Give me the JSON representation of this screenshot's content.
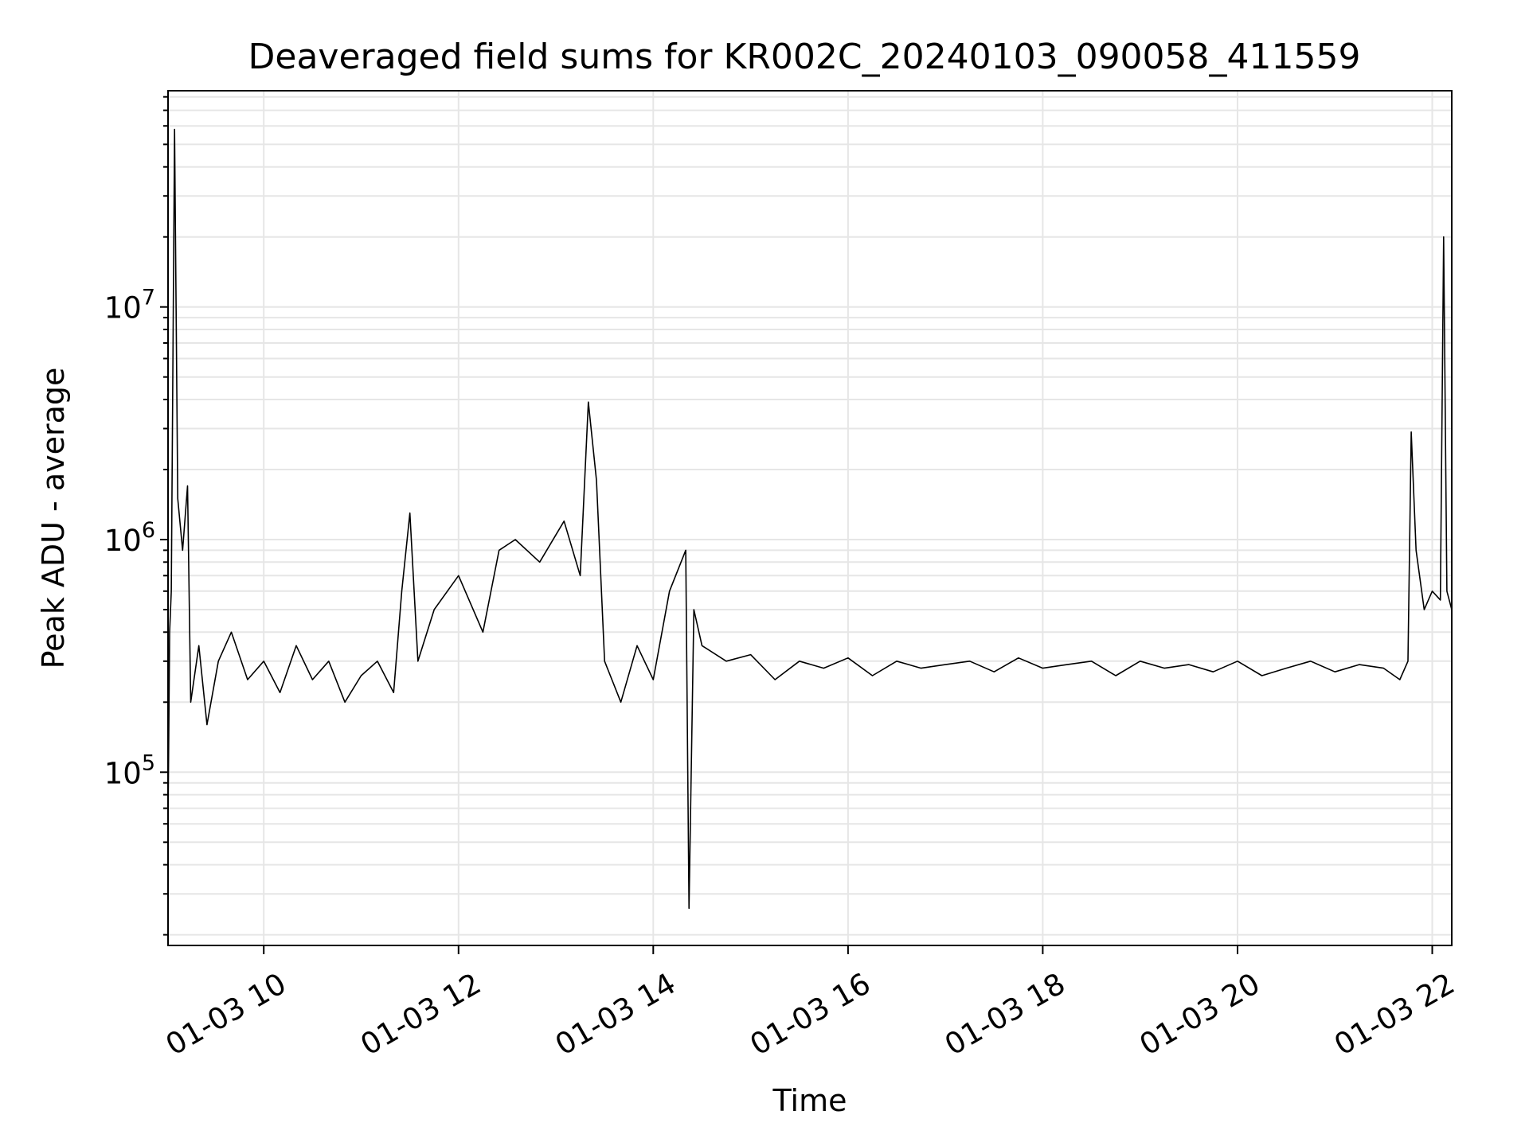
{
  "chart_data": {
    "type": "line",
    "title": "Deaveraged field sums for KR002C_20240103_090058_411559",
    "xlabel": "Time",
    "ylabel": "Peak ADU - average",
    "y_scale": "log",
    "ylim": [
      18000,
      85000000
    ],
    "xlim": [
      "2024-01-03 09:01",
      "2024-01-03 22:12"
    ],
    "x_ticks": [
      {
        "value": "2024-01-03 10:00",
        "label": "01-03 10"
      },
      {
        "value": "2024-01-03 12:00",
        "label": "01-03 12"
      },
      {
        "value": "2024-01-03 14:00",
        "label": "01-03 14"
      },
      {
        "value": "2024-01-03 16:00",
        "label": "01-03 16"
      },
      {
        "value": "2024-01-03 18:00",
        "label": "01-03 18"
      },
      {
        "value": "2024-01-03 20:00",
        "label": "01-03 20"
      },
      {
        "value": "2024-01-03 22:00",
        "label": "01-03 22"
      }
    ],
    "y_ticks": [
      {
        "value": 100000,
        "base": "10",
        "exp": "5"
      },
      {
        "value": 1000000,
        "base": "10",
        "exp": "6"
      },
      {
        "value": 10000000,
        "base": "10",
        "exp": "7"
      }
    ],
    "grid": true,
    "line_color": "#000000",
    "series": [
      {
        "x": [
          "2024-01-03 09:01",
          "2024-01-03 09:02",
          "2024-01-03 09:03",
          "2024-01-03 09:05",
          "2024-01-03 09:07",
          "2024-01-03 09:10",
          "2024-01-03 09:13",
          "2024-01-03 09:15",
          "2024-01-03 09:20",
          "2024-01-03 09:25",
          "2024-01-03 09:32",
          "2024-01-03 09:40",
          "2024-01-03 09:50",
          "2024-01-03 10:00",
          "2024-01-03 10:10",
          "2024-01-03 10:20",
          "2024-01-03 10:30",
          "2024-01-03 10:40",
          "2024-01-03 10:50",
          "2024-01-03 11:00",
          "2024-01-03 11:10",
          "2024-01-03 11:20",
          "2024-01-03 11:25",
          "2024-01-03 11:30",
          "2024-01-03 11:35",
          "2024-01-03 11:45",
          "2024-01-03 12:00",
          "2024-01-03 12:15",
          "2024-01-03 12:25",
          "2024-01-03 12:35",
          "2024-01-03 12:50",
          "2024-01-03 13:05",
          "2024-01-03 13:15",
          "2024-01-03 13:20",
          "2024-01-03 13:25",
          "2024-01-03 13:30",
          "2024-01-03 13:40",
          "2024-01-03 13:50",
          "2024-01-03 14:00",
          "2024-01-03 14:10",
          "2024-01-03 14:20",
          "2024-01-03 14:22",
          "2024-01-03 14:25",
          "2024-01-03 14:30",
          "2024-01-03 14:45",
          "2024-01-03 15:00",
          "2024-01-03 15:15",
          "2024-01-03 15:30",
          "2024-01-03 15:45",
          "2024-01-03 16:00",
          "2024-01-03 16:15",
          "2024-01-03 16:30",
          "2024-01-03 16:45",
          "2024-01-03 17:00",
          "2024-01-03 17:15",
          "2024-01-03 17:30",
          "2024-01-03 17:45",
          "2024-01-03 18:00",
          "2024-01-03 18:15",
          "2024-01-03 18:30",
          "2024-01-03 18:45",
          "2024-01-03 19:00",
          "2024-01-03 19:15",
          "2024-01-03 19:30",
          "2024-01-03 19:45",
          "2024-01-03 20:00",
          "2024-01-03 20:15",
          "2024-01-03 20:30",
          "2024-01-03 20:45",
          "2024-01-03 21:00",
          "2024-01-03 21:15",
          "2024-01-03 21:30",
          "2024-01-03 21:40",
          "2024-01-03 21:45",
          "2024-01-03 21:47",
          "2024-01-03 21:50",
          "2024-01-03 21:55",
          "2024-01-03 22:00",
          "2024-01-03 22:05",
          "2024-01-03 22:07",
          "2024-01-03 22:09",
          "2024-01-03 22:12"
        ],
        "values": [
          60000,
          400000,
          600000,
          58000000,
          1500000,
          900000,
          1700000,
          200000,
          350000,
          160000,
          300000,
          400000,
          250000,
          300000,
          220000,
          350000,
          250000,
          300000,
          200000,
          260000,
          300000,
          220000,
          600000,
          1300000,
          300000,
          500000,
          700000,
          400000,
          900000,
          1000000,
          800000,
          1200000,
          700000,
          3900000,
          1800000,
          300000,
          200000,
          350000,
          250000,
          600000,
          900000,
          26000,
          500000,
          350000,
          300000,
          320000,
          250000,
          300000,
          280000,
          310000,
          260000,
          300000,
          280000,
          290000,
          300000,
          270000,
          310000,
          280000,
          290000,
          300000,
          260000,
          300000,
          280000,
          290000,
          270000,
          300000,
          260000,
          280000,
          300000,
          270000,
          290000,
          280000,
          250000,
          300000,
          2900000,
          900000,
          500000,
          600000,
          550000,
          20000000,
          600000,
          500000
        ]
      }
    ]
  }
}
